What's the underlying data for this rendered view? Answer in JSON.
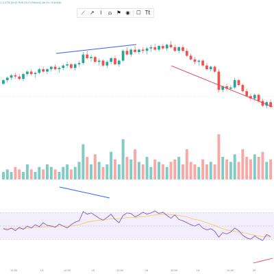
{
  "legend": {
    "text": "1.2  Z76.6X42  R95.9X72  R8xk41.6k  H1.7x1b33k"
  },
  "toolbar": {
    "tools": [
      {
        "name": "trendline-tool",
        "glyph": "⟋"
      },
      {
        "name": "arrow-tool",
        "glyph": "↗"
      },
      {
        "name": "path-tool",
        "glyph": "⌇"
      },
      {
        "name": "chart-tool",
        "glyph": "⩍"
      },
      {
        "name": "flag-tool",
        "glyph": "⚑"
      },
      {
        "name": "marker-tool",
        "glyph": "◉"
      },
      {
        "name": "rectangle-tool",
        "glyph": "☐"
      },
      {
        "name": "text-tool",
        "glyph": "Tt"
      }
    ]
  },
  "time_axis": {
    "ticks": [
      "12:30",
      "14",
      "12:30",
      "15",
      "12:30",
      "16",
      "12:30",
      "19",
      "12:30",
      "20"
    ]
  },
  "colors": {
    "up": "#26a69a",
    "down": "#ef5350",
    "trendline_blue": "#2962ff",
    "trendline_red": "#f23645",
    "rsi_line": "#7e57c2",
    "rsi_band": "#f3eefb",
    "rsi_ma": "#f7c948"
  },
  "chart_data": [
    {
      "type": "candlestick",
      "title": "",
      "candles": [
        [
          47.0,
          47.4,
          46.9,
          47.3
        ],
        [
          47.3,
          47.6,
          47.1,
          47.5
        ],
        [
          47.5,
          47.8,
          47.3,
          47.7
        ],
        [
          47.7,
          47.9,
          47.4,
          47.6
        ],
        [
          47.6,
          47.8,
          47.3,
          47.4
        ],
        [
          47.4,
          47.9,
          47.2,
          47.8
        ],
        [
          47.8,
          48.1,
          47.6,
          48.0
        ],
        [
          48.0,
          48.2,
          47.7,
          47.8
        ],
        [
          47.8,
          48.0,
          47.5,
          47.9
        ],
        [
          47.9,
          48.3,
          47.8,
          48.2
        ],
        [
          48.2,
          48.4,
          47.9,
          48.0
        ],
        [
          48.0,
          48.3,
          47.8,
          48.2
        ],
        [
          48.2,
          48.5,
          48.0,
          48.4
        ],
        [
          48.4,
          48.6,
          48.1,
          48.2
        ],
        [
          48.2,
          48.4,
          47.9,
          48.3
        ],
        [
          48.3,
          48.6,
          48.1,
          48.5
        ],
        [
          48.5,
          48.8,
          48.3,
          48.6
        ],
        [
          48.6,
          48.7,
          48.2,
          48.3
        ],
        [
          48.3,
          48.7,
          48.1,
          48.6
        ],
        [
          48.6,
          48.9,
          48.4,
          48.7
        ],
        [
          48.7,
          49.6,
          48.6,
          49.4
        ],
        [
          49.4,
          49.7,
          49.0,
          49.1
        ],
        [
          49.1,
          49.4,
          48.8,
          49.2
        ],
        [
          49.2,
          49.3,
          48.7,
          48.8
        ],
        [
          48.8,
          49.1,
          48.5,
          48.9
        ],
        [
          48.9,
          49.0,
          48.4,
          48.5
        ],
        [
          48.5,
          48.9,
          48.3,
          48.8
        ],
        [
          48.8,
          49.2,
          48.6,
          49.1
        ],
        [
          49.1,
          49.3,
          48.5,
          48.6
        ],
        [
          48.6,
          49.0,
          48.4,
          48.9
        ],
        [
          48.9,
          49.8,
          48.8,
          49.7
        ],
        [
          49.7,
          50.0,
          49.3,
          49.4
        ],
        [
          49.4,
          49.9,
          49.2,
          49.8
        ],
        [
          49.8,
          50.1,
          49.5,
          49.6
        ],
        [
          49.6,
          49.9,
          49.4,
          49.8
        ],
        [
          49.8,
          50.0,
          49.5,
          49.7
        ],
        [
          49.7,
          50.0,
          49.4,
          49.9
        ],
        [
          49.9,
          50.2,
          49.6,
          50.0
        ],
        [
          50.0,
          50.3,
          49.7,
          49.8
        ],
        [
          49.8,
          50.2,
          49.6,
          50.1
        ],
        [
          50.1,
          50.3,
          49.8,
          49.9
        ],
        [
          49.9,
          50.3,
          49.7,
          50.2
        ],
        [
          50.2,
          50.5,
          49.9,
          50.0
        ],
        [
          50.0,
          50.2,
          49.6,
          49.7
        ],
        [
          49.7,
          50.1,
          49.5,
          50.0
        ],
        [
          50.0,
          50.2,
          49.6,
          49.7
        ],
        [
          49.7,
          49.9,
          49.2,
          49.3
        ],
        [
          49.3,
          49.5,
          48.9,
          49.0
        ],
        [
          49.0,
          49.2,
          48.6,
          48.8
        ],
        [
          48.8,
          49.0,
          48.5,
          48.9
        ],
        [
          48.9,
          49.0,
          48.4,
          48.5
        ],
        [
          48.5,
          48.7,
          48.1,
          48.2
        ],
        [
          48.2,
          48.5,
          48.0,
          48.4
        ],
        [
          48.4,
          48.5,
          47.9,
          48.0
        ],
        [
          48.0,
          48.2,
          46.3,
          46.5
        ],
        [
          46.5,
          46.9,
          46.3,
          46.8
        ],
        [
          46.8,
          47.0,
          46.4,
          46.6
        ],
        [
          46.6,
          46.9,
          46.4,
          46.7
        ],
        [
          46.7,
          47.5,
          46.6,
          47.3
        ],
        [
          47.3,
          47.4,
          46.8,
          46.9
        ],
        [
          46.9,
          47.0,
          46.3,
          46.4
        ],
        [
          46.4,
          46.6,
          45.9,
          46.0
        ],
        [
          46.0,
          46.2,
          45.6,
          45.8
        ],
        [
          45.8,
          46.2,
          45.6,
          46.1
        ],
        [
          46.1,
          46.2,
          45.5,
          45.6
        ],
        [
          45.6,
          45.8,
          45.1,
          45.2
        ],
        [
          45.2,
          45.6,
          45.0,
          45.5
        ],
        [
          45.5,
          45.7,
          45.0,
          45.1
        ]
      ]
    },
    {
      "type": "bar",
      "title": "",
      "values": [
        3,
        4,
        3,
        5,
        4,
        3,
        6,
        4,
        3,
        5,
        4,
        6,
        5,
        4,
        3,
        5,
        6,
        4,
        5,
        7,
        14,
        9,
        6,
        10,
        7,
        5,
        6,
        11,
        8,
        6,
        16,
        9,
        8,
        12,
        7,
        6,
        9,
        5,
        8,
        7,
        6,
        5,
        7,
        8,
        9,
        6,
        12,
        7,
        6,
        5,
        8,
        6,
        7,
        6,
        18,
        9,
        8,
        7,
        10,
        7,
        12,
        9,
        8,
        10,
        9,
        11,
        7,
        8
      ]
    },
    {
      "type": "line",
      "title": "",
      "values": [
        46,
        44,
        47,
        43,
        48,
        45,
        50,
        47,
        52,
        49,
        55,
        51,
        50,
        48,
        53,
        50,
        47,
        52,
        56,
        58,
        72,
        68,
        70,
        66,
        62,
        59,
        63,
        68,
        60,
        55,
        66,
        70,
        69,
        64,
        67,
        71,
        68,
        70,
        73,
        69,
        71,
        66,
        62,
        67,
        60,
        58,
        55,
        52,
        50,
        53,
        47,
        44,
        46,
        42,
        33,
        40,
        38,
        41,
        47,
        43,
        36,
        32,
        30,
        35,
        31,
        28,
        37,
        34
      ],
      "ma": [
        47,
        46,
        46,
        46,
        46,
        46,
        47,
        47,
        48,
        48,
        49,
        49,
        49,
        49,
        50,
        50,
        50,
        50,
        51,
        52,
        54,
        56,
        57,
        58,
        59,
        59,
        60,
        61,
        61,
        61,
        62,
        63,
        63,
        63,
        64,
        64,
        65,
        66,
        67,
        67,
        68,
        68,
        67,
        67,
        66,
        65,
        64,
        62,
        60,
        59,
        57,
        55,
        53,
        51,
        48,
        46,
        44,
        43,
        42,
        41,
        40,
        39,
        37,
        36,
        35,
        34,
        34,
        33
      ],
      "ylim": [
        0,
        100
      ],
      "bands": [
        30,
        70
      ]
    }
  ]
}
